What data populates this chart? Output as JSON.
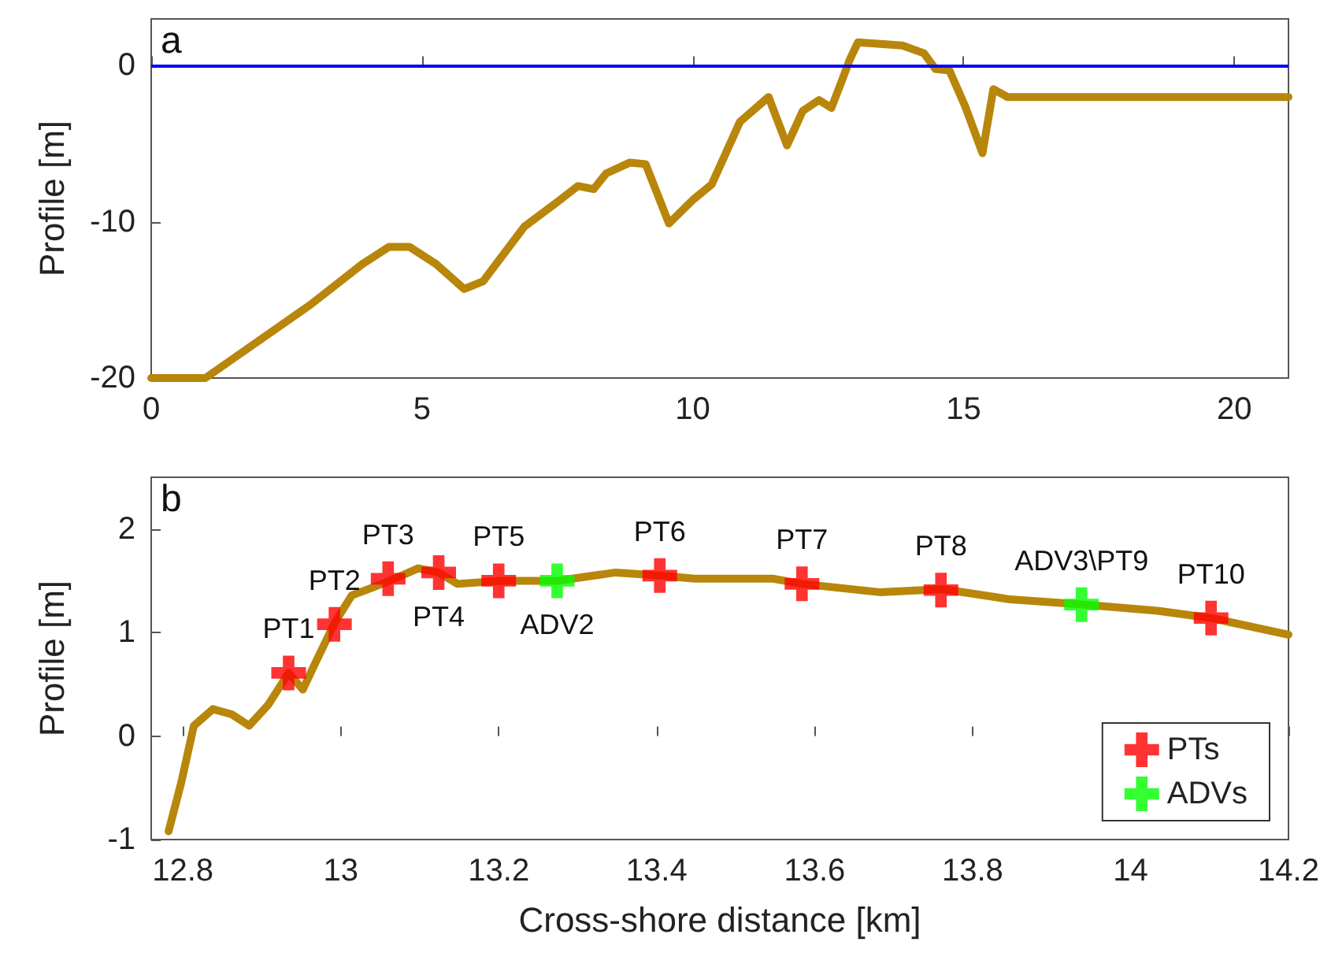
{
  "chart_data": [
    {
      "type": "line",
      "ylabel": "Profile [m]",
      "annotations": [
        "a"
      ],
      "xlim": [
        0,
        21
      ],
      "ylim": [
        -20,
        3
      ],
      "xticks": [
        0,
        5,
        10,
        15,
        20
      ],
      "yticks": [
        -20,
        -10,
        0
      ],
      "grid": false,
      "legend": false,
      "ref_lines": [
        {
          "axis": "y",
          "value": 0,
          "color": "#0000ff"
        }
      ],
      "series": [
        {
          "color": "#b8860b",
          "marker": "none",
          "x": [
            0,
            1.0,
            2.94,
            3.9,
            4.39,
            4.77,
            5.26,
            5.78,
            6.13,
            6.89,
            7.47,
            7.88,
            8.17,
            8.4,
            8.84,
            9.13,
            9.56,
            10.0,
            10.35,
            10.87,
            11.4,
            11.74,
            12.03,
            12.33,
            12.56,
            12.76,
            12.9,
            13.05,
            13.87,
            14.27,
            14.48,
            14.74,
            15.03,
            15.35,
            15.55,
            15.81,
            21
          ],
          "values": [
            -20,
            -20,
            -15.3,
            -12.7,
            -11.6,
            -11.6,
            -12.7,
            -14.3,
            -13.8,
            -10.3,
            -8.8,
            -7.7,
            -7.9,
            -6.9,
            -6.2,
            -6.3,
            -10.1,
            -8.6,
            -7.6,
            -3.6,
            -2.0,
            -5.1,
            -2.9,
            -2.2,
            -2.7,
            -0.9,
            0.4,
            1.5,
            1.3,
            0.8,
            -0.2,
            -0.3,
            -2.6,
            -5.6,
            -1.5,
            -2.0,
            -2.0
          ]
        }
      ]
    },
    {
      "type": "line",
      "xlabel": "Cross-shore distance [km]",
      "ylabel": "Profile [m]",
      "xlim": [
        12.76,
        14.2
      ],
      "ylim": [
        -1,
        2.5
      ],
      "xticks": [
        12.8,
        13,
        13.2,
        13.4,
        13.6,
        13.8,
        14,
        14.2
      ],
      "yticks": [
        -1,
        0,
        1,
        2
      ],
      "grid": false,
      "legend": "bottom right",
      "annotations": [
        "b",
        {
          "text": "PT1",
          "x": 12.934,
          "y": 0.61
        },
        {
          "text": "PT2",
          "x": 12.992,
          "y": 1.08
        },
        {
          "text": "PT3",
          "x": 13.06,
          "y": 1.52
        },
        {
          "text": "PT4",
          "x": 13.124,
          "y": 1.58
        },
        {
          "text": "PT5",
          "x": 13.2,
          "y": 1.5
        },
        {
          "text": "ADV2",
          "x": 13.274,
          "y": 1.5
        },
        {
          "text": "PT6",
          "x": 13.404,
          "y": 1.55
        },
        {
          "text": "PT7",
          "x": 13.584,
          "y": 1.47
        },
        {
          "text": "PT8",
          "x": 13.76,
          "y": 1.41
        },
        {
          "text": "ADV3\\PT9",
          "x": 13.938,
          "y": 1.27
        },
        {
          "text": "PT10",
          "x": 14.102,
          "y": 1.14
        }
      ],
      "series": [
        {
          "color": "#b8860b",
          "marker": "none",
          "x": [
            12.782,
            12.798,
            12.814,
            12.838,
            12.862,
            12.884,
            12.908,
            12.934,
            12.952,
            12.968,
            12.992,
            13.014,
            13.042,
            13.062,
            13.098,
            13.124,
            13.148,
            13.202,
            13.274,
            13.348,
            13.404,
            13.448,
            13.508,
            13.548,
            13.584,
            13.682,
            13.762,
            13.848,
            13.942,
            14.034,
            14.102,
            14.2
          ],
          "values": [
            -0.92,
            -0.45,
            0.1,
            0.26,
            0.21,
            0.1,
            0.3,
            0.61,
            0.45,
            0.71,
            1.09,
            1.36,
            1.44,
            1.5,
            1.62,
            1.58,
            1.47,
            1.5,
            1.5,
            1.58,
            1.55,
            1.52,
            1.52,
            1.52,
            1.47,
            1.39,
            1.42,
            1.32,
            1.27,
            1.21,
            1.14,
            0.98
          ]
        },
        {
          "name": "PTs",
          "type": "scatter",
          "marker": "cross",
          "color": "#ff0000",
          "x": [
            12.934,
            12.992,
            13.06,
            13.124,
            13.2,
            13.404,
            13.584,
            13.76,
            14.102
          ],
          "values": [
            0.61,
            1.08,
            1.52,
            1.58,
            1.5,
            1.55,
            1.47,
            1.41,
            1.14
          ]
        },
        {
          "name": "ADVs",
          "type": "scatter",
          "marker": "cross",
          "color": "#00ff00",
          "x": [
            13.274,
            13.938
          ],
          "values": [
            1.5,
            1.27
          ]
        }
      ]
    }
  ]
}
